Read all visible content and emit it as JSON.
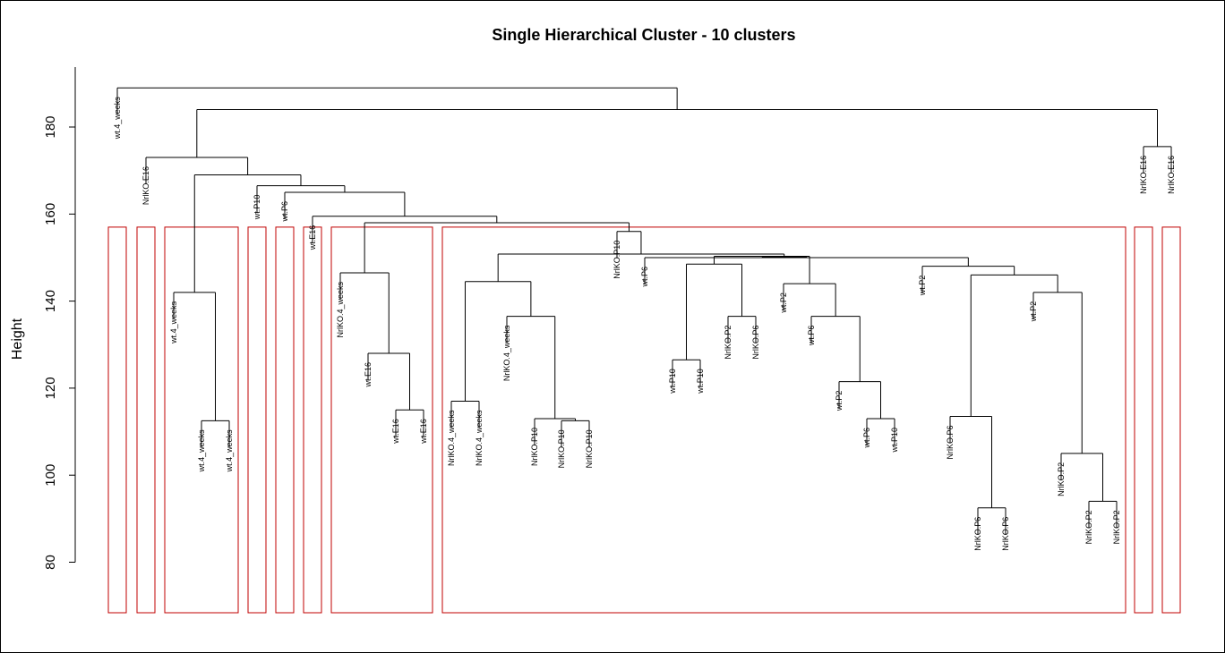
{
  "chart_data": {
    "type": "dendrogram",
    "title": "Single Hierarchical Cluster - 10 clusters",
    "xlabel": "",
    "ylabel": "Height",
    "yticks": [
      80,
      100,
      120,
      140,
      160,
      180
    ],
    "ylim": [
      78,
      190
    ],
    "cluster_count": 10,
    "cut_height": 157,
    "leaves": [
      "wt.4_weeks",
      "NrlKO.E16",
      "wt.4_weeks",
      "wt.4_weeks",
      "wt.4_weeks",
      "wt.P10",
      "wt.P6",
      "wt.E16",
      "NrlKO.4_weeks",
      "wt.E16",
      "wt.E16",
      "wt.E16",
      "NrlKO.4_weeks",
      "NrlKO.4_weeks",
      "NrlKO.4_weeks",
      "NrlKO.P10",
      "NrlKO.P10",
      "NrlKO.P10",
      "NrlKO.P10",
      "wt.P6",
      "wt.P10",
      "wt.P10",
      "NrlKO.P2",
      "NrlKO.P6",
      "wt.P2",
      "wt.P6",
      "wt.P2",
      "wt.P6",
      "wt.P10",
      "wt.P2",
      "NrlKO.P6",
      "NrlKO.P6",
      "NrlKO.P6",
      "wt.P2",
      "NrlKO.P2",
      "NrlKO.P2",
      "NrlKO.P2",
      "NrlKO.E16",
      "NrlKO.E16"
    ],
    "merges": [
      {
        "id": "m1",
        "children": [
          "L3",
          "L4"
        ],
        "height": 112.5
      },
      {
        "id": "m2",
        "children": [
          "L2",
          "m1"
        ],
        "height": 142
      },
      {
        "id": "m3",
        "children": [
          "L10",
          "L11"
        ],
        "height": 115
      },
      {
        "id": "m4",
        "children": [
          "L9",
          "m3"
        ],
        "height": 128
      },
      {
        "id": "m5",
        "children": [
          "L8",
          "m4"
        ],
        "height": 146.5
      },
      {
        "id": "m6",
        "children": [
          "L12",
          "L13"
        ],
        "height": 117
      },
      {
        "id": "m7",
        "children": [
          "L16",
          "L17"
        ],
        "height": 112.5
      },
      {
        "id": "m8",
        "children": [
          "L15",
          "m7"
        ],
        "height": 113
      },
      {
        "id": "m9",
        "children": [
          "L14",
          "m8"
        ],
        "height": 136.5
      },
      {
        "id": "m10",
        "children": [
          "m6",
          "m9"
        ],
        "height": 144.5
      },
      {
        "id": "m11",
        "children": [
          "L20",
          "L21"
        ],
        "height": 126.5
      },
      {
        "id": "m12",
        "children": [
          "L22",
          "L23"
        ],
        "height": 136.5
      },
      {
        "id": "m13",
        "children": [
          "m11",
          "m12"
        ],
        "height": 148.5
      },
      {
        "id": "m14",
        "children": [
          "L27",
          "L28"
        ],
        "height": 113
      },
      {
        "id": "m15",
        "children": [
          "L26",
          "m14"
        ],
        "height": 121.5
      },
      {
        "id": "m16",
        "children": [
          "L25",
          "m15"
        ],
        "height": 136.5
      },
      {
        "id": "m17",
        "children": [
          "L24",
          "m16"
        ],
        "height": 144
      },
      {
        "id": "m18",
        "children": [
          "L31",
          "L32"
        ],
        "height": 92.5
      },
      {
        "id": "m19",
        "children": [
          "L30",
          "m18"
        ],
        "height": 113.5
      },
      {
        "id": "m20",
        "children": [
          "L35",
          "L36"
        ],
        "height": 94
      },
      {
        "id": "m21",
        "children": [
          "L34",
          "m20"
        ],
        "height": 105
      },
      {
        "id": "m22",
        "children": [
          "L33",
          "m21"
        ],
        "height": 142
      },
      {
        "id": "m23",
        "children": [
          "m19",
          "m22"
        ],
        "height": 146
      },
      {
        "id": "m24",
        "children": [
          "L29",
          "m23"
        ],
        "height": 148
      },
      {
        "id": "m25",
        "children": [
          "m24",
          "L19"
        ],
        "height": 150
      },
      {
        "id": "m26",
        "children": [
          "m13",
          "m17"
        ],
        "height": 150.3
      },
      {
        "id": "m27",
        "children": [
          "m26",
          "m25"
        ],
        "height": 150.2
      },
      {
        "id": "m28",
        "children": [
          "m10",
          "m27"
        ],
        "height": 150.8
      },
      {
        "id": "m29",
        "children": [
          "L18",
          "m28"
        ],
        "height": 156
      },
      {
        "id": "m30",
        "children": [
          "m5",
          "m29"
        ],
        "height": 158
      },
      {
        "id": "m31",
        "children": [
          "L7",
          "m30"
        ],
        "height": 159.5
      },
      {
        "id": "m32",
        "children": [
          "L6",
          "m31"
        ],
        "height": 165
      },
      {
        "id": "m33",
        "children": [
          "L5",
          "m32"
        ],
        "height": 166.5
      },
      {
        "id": "m34",
        "children": [
          "m2",
          "m33"
        ],
        "height": 169
      },
      {
        "id": "m35",
        "children": [
          "L1",
          "m34"
        ],
        "height": 173
      },
      {
        "id": "m36",
        "children": [
          "L37",
          "L38"
        ],
        "height": 175.5
      },
      {
        "id": "m37",
        "children": [
          "m35",
          "m36"
        ],
        "height": 184
      },
      {
        "id": "m38",
        "children": [
          "L0",
          "m37"
        ],
        "height": 189
      }
    ],
    "clusters": [
      [
        0
      ],
      [
        1
      ],
      [
        2,
        3,
        4
      ],
      [
        5
      ],
      [
        6
      ],
      [
        7
      ],
      [
        8,
        9,
        10,
        11
      ],
      [
        12,
        13,
        14,
        15,
        16,
        17,
        18,
        19,
        20,
        21,
        22,
        23,
        24,
        25,
        26,
        27,
        28,
        29,
        30,
        31,
        32,
        33,
        34,
        35,
        36
      ],
      [
        37
      ],
      [
        38
      ]
    ]
  }
}
